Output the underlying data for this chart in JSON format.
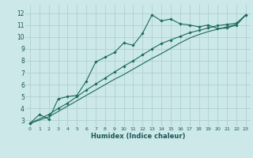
{
  "xlabel": "Humidex (Indice chaleur)",
  "bg_color": "#cce8e8",
  "grid_color": "#aacccc",
  "line_color": "#1a6b5a",
  "xlim": [
    -0.5,
    23.5
  ],
  "ylim": [
    2.5,
    12.7
  ],
  "xticks": [
    0,
    1,
    2,
    3,
    4,
    5,
    6,
    7,
    8,
    9,
    10,
    11,
    12,
    13,
    14,
    15,
    16,
    17,
    18,
    19,
    20,
    21,
    22,
    23
  ],
  "yticks": [
    3,
    4,
    5,
    6,
    7,
    8,
    9,
    10,
    11,
    12
  ],
  "line1_x": [
    0,
    1,
    2,
    3,
    4,
    5,
    6,
    7,
    8,
    9,
    10,
    11,
    12,
    13,
    14,
    15,
    16,
    17,
    18,
    19,
    20,
    21,
    22,
    23
  ],
  "line1_y": [
    2.75,
    3.5,
    3.1,
    4.8,
    5.0,
    5.1,
    6.3,
    7.9,
    8.3,
    8.7,
    9.5,
    9.3,
    10.3,
    11.85,
    11.35,
    11.5,
    11.1,
    11.0,
    10.85,
    11.0,
    10.7,
    10.75,
    11.0,
    11.85
  ],
  "line2_x": [
    0,
    2,
    3,
    4,
    5,
    6,
    7,
    8,
    9,
    10,
    11,
    12,
    13,
    14,
    15,
    16,
    17,
    18,
    19,
    20,
    21,
    22,
    23
  ],
  "line2_y": [
    2.75,
    3.5,
    4.0,
    4.45,
    5.0,
    5.55,
    6.05,
    6.55,
    7.05,
    7.55,
    8.0,
    8.5,
    9.0,
    9.45,
    9.75,
    10.05,
    10.35,
    10.55,
    10.75,
    10.95,
    11.05,
    11.15,
    11.85
  ],
  "line3_x": [
    0,
    2,
    3,
    4,
    5,
    6,
    7,
    8,
    9,
    10,
    11,
    12,
    13,
    14,
    15,
    16,
    17,
    18,
    19,
    20,
    21,
    22,
    23
  ],
  "line3_y": [
    2.75,
    3.3,
    3.75,
    4.2,
    4.65,
    5.1,
    5.55,
    6.0,
    6.45,
    6.85,
    7.3,
    7.75,
    8.2,
    8.6,
    9.05,
    9.5,
    9.9,
    10.2,
    10.45,
    10.65,
    10.85,
    11.05,
    11.85
  ]
}
